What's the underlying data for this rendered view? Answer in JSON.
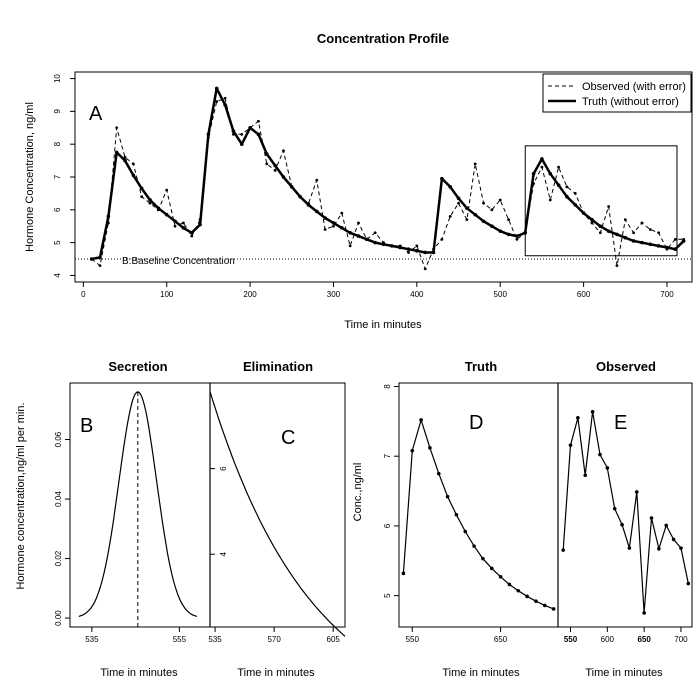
{
  "chart_data": [
    {
      "id": "A",
      "type": "line",
      "title": "Concentration Profile",
      "panel_label": "A",
      "xlabel": "Time in minutes",
      "ylabel": "Hormone Concentration, ng/ml",
      "xlim": [
        -10,
        730
      ],
      "ylim": [
        3.8,
        10.2
      ],
      "xticks": [
        0,
        100,
        200,
        300,
        400,
        500,
        600,
        700
      ],
      "yticks": [
        4,
        5,
        6,
        7,
        8,
        9,
        10
      ],
      "baseline": {
        "value": 4.5,
        "label": "B:Baseline Concentration"
      },
      "highlight_box": {
        "x": [
          530,
          712
        ],
        "y": [
          4.6,
          7.95
        ]
      },
      "legend": {
        "position": "top-right"
      },
      "series": [
        {
          "name": "Observed (with error)",
          "style": "dashed",
          "x": [
            10,
            20,
            30,
            40,
            50,
            60,
            70,
            80,
            90,
            100,
            110,
            120,
            130,
            140,
            150,
            160,
            170,
            180,
            190,
            200,
            210,
            220,
            230,
            240,
            250,
            260,
            270,
            280,
            290,
            300,
            310,
            320,
            330,
            340,
            350,
            360,
            370,
            380,
            390,
            400,
            410,
            420,
            430,
            440,
            450,
            460,
            470,
            480,
            490,
            500,
            510,
            520,
            530,
            540,
            550,
            560,
            570,
            580,
            590,
            600,
            610,
            620,
            630,
            640,
            650,
            660,
            670,
            680,
            690,
            700,
            710,
            720
          ],
          "y": [
            4.5,
            4.3,
            5.6,
            8.5,
            7.6,
            7.4,
            6.4,
            6.2,
            6.0,
            6.6,
            5.5,
            5.6,
            5.2,
            5.7,
            8.2,
            9.3,
            9.4,
            8.3,
            8.3,
            8.5,
            8.7,
            7.4,
            7.2,
            7.8,
            6.7,
            6.4,
            6.2,
            6.9,
            5.4,
            5.5,
            5.9,
            4.9,
            5.6,
            5.1,
            5.3,
            5.0,
            4.9,
            4.9,
            4.7,
            4.9,
            4.2,
            4.8,
            5.1,
            5.8,
            6.2,
            5.7,
            7.4,
            6.2,
            6.0,
            6.3,
            5.7,
            5.1,
            5.3,
            6.8,
            7.3,
            6.3,
            7.3,
            6.7,
            6.5,
            5.9,
            5.6,
            5.3,
            6.1,
            4.3,
            5.7,
            5.3,
            5.6,
            5.4,
            5.3,
            4.8,
            5.1,
            5.1
          ]
        },
        {
          "name": "Truth (without error)",
          "style": "solid",
          "x": [
            10,
            20,
            30,
            40,
            50,
            60,
            70,
            80,
            90,
            100,
            110,
            120,
            130,
            140,
            150,
            160,
            170,
            180,
            190,
            200,
            210,
            220,
            230,
            240,
            250,
            260,
            270,
            280,
            290,
            300,
            310,
            320,
            330,
            340,
            350,
            360,
            370,
            380,
            390,
            400,
            410,
            420,
            430,
            440,
            450,
            460,
            470,
            480,
            490,
            500,
            510,
            520,
            530,
            540,
            550,
            560,
            570,
            580,
            590,
            600,
            610,
            620,
            630,
            640,
            650,
            660,
            670,
            680,
            690,
            700,
            710,
            720
          ],
          "y": [
            4.5,
            4.55,
            5.8,
            7.75,
            7.5,
            7.05,
            6.65,
            6.3,
            6.05,
            5.85,
            5.65,
            5.45,
            5.3,
            5.55,
            8.3,
            9.7,
            9.2,
            8.4,
            8.0,
            8.5,
            8.3,
            7.7,
            7.35,
            7.0,
            6.7,
            6.4,
            6.15,
            5.95,
            5.75,
            5.6,
            5.45,
            5.3,
            5.2,
            5.1,
            5.0,
            4.95,
            4.9,
            4.85,
            4.8,
            4.75,
            4.7,
            4.7,
            6.95,
            6.7,
            6.35,
            6.05,
            5.85,
            5.65,
            5.5,
            5.35,
            5.25,
            5.2,
            5.3,
            7.1,
            7.55,
            7.1,
            6.75,
            6.4,
            6.15,
            5.9,
            5.7,
            5.5,
            5.35,
            5.25,
            5.15,
            5.05,
            5.0,
            4.95,
            4.9,
            4.85,
            4.8,
            5.05
          ]
        }
      ]
    },
    {
      "id": "B",
      "type": "line",
      "title": "Secretion",
      "panel_label": "B",
      "xlabel": "Time in minutes",
      "ylabel": "Hormone concentration,ng/ml per min.",
      "xlim": [
        530,
        562
      ],
      "ylim": [
        -0.003,
        0.079
      ],
      "xticks": [
        535,
        555
      ],
      "yticks": [
        0.0,
        0.02,
        0.04,
        0.06
      ],
      "peak": {
        "time": 545.5,
        "height": 0.076,
        "sd": 4.3
      }
    },
    {
      "id": "C",
      "type": "line",
      "title": "Elimination",
      "panel_label": "C",
      "xlabel": "Time in minutes",
      "xlim": [
        532,
        612
      ],
      "ylim": [
        2.3,
        8.0
      ],
      "xticks": [
        535,
        570,
        605
      ],
      "yticks": [
        4,
        6
      ],
      "decay": {
        "start": 7.8,
        "rate": 0.0165
      }
    },
    {
      "id": "D",
      "type": "line",
      "title": "Truth",
      "panel_label": "D",
      "xlabel": "Time in minutes",
      "ylabel": "Conc.,ng/ml",
      "xlim": [
        535,
        715
      ],
      "ylim": [
        4.55,
        8.05
      ],
      "xticks": [
        550,
        650
      ],
      "yticks": [
        5,
        6,
        7,
        8
      ],
      "x": [
        540,
        550,
        560,
        570,
        580,
        590,
        600,
        610,
        620,
        630,
        640,
        650,
        660,
        670,
        680,
        690,
        700,
        710
      ],
      "y": [
        5.32,
        7.08,
        7.52,
        7.12,
        6.75,
        6.42,
        6.16,
        5.92,
        5.71,
        5.53,
        5.39,
        5.27,
        5.16,
        5.07,
        4.99,
        4.92,
        4.86,
        4.81
      ]
    },
    {
      "id": "E",
      "type": "line",
      "title": "Observed",
      "panel_label": "E",
      "xlabel": "Time in minutes",
      "xlim": [
        533,
        715
      ],
      "ylim": [
        4.1,
        7.75
      ],
      "xticks": [
        550,
        600,
        650,
        700
      ],
      "x": [
        540,
        550,
        560,
        570,
        580,
        590,
        600,
        610,
        620,
        630,
        640,
        650,
        660,
        670,
        680,
        690,
        700,
        710
      ],
      "y": [
        5.25,
        6.82,
        7.23,
        6.37,
        7.32,
        6.68,
        6.48,
        5.87,
        5.63,
        5.28,
        6.12,
        4.31,
        5.73,
        5.27,
        5.62,
        5.41,
        5.28,
        4.75
      ]
    }
  ]
}
